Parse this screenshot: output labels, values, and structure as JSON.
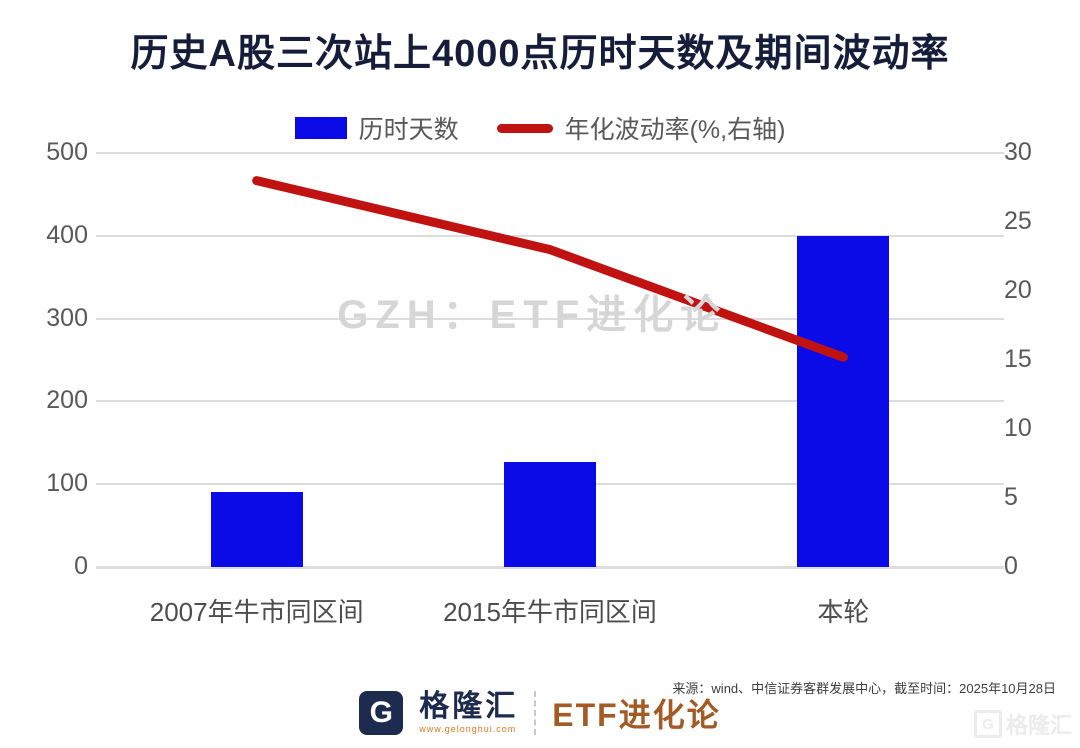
{
  "title": "历史A股三次站上4000点历时天数及期间波动率",
  "watermark": "GZH：ETF进化论",
  "colors": {
    "bar_blue": "#0b0be8",
    "line_red": "#c11212",
    "title_navy": "#151d3b",
    "gridline": "#dcdcdc",
    "axis_text": "#595959",
    "watermark_gray": "#d6d6d6",
    "brand_navy": "#1d2b4f",
    "brand_brown": "#a35a25",
    "brand_orange": "#e07820"
  },
  "chart_data": {
    "type": "bar",
    "subtype": "bar+line combo, dual axis",
    "title": "历史A股三次站上4000点历时天数及期间波动率",
    "categories": [
      "2007年牛市同区间",
      "2015年牛市同区间",
      "本轮"
    ],
    "series": [
      {
        "name": "历时天数",
        "type": "bar",
        "axis": "left",
        "color": "#0b0be8",
        "values": [
          90,
          127,
          400
        ]
      },
      {
        "name": "年化波动率(%,右轴)",
        "type": "line",
        "axis": "right",
        "color": "#c11212",
        "values": [
          28,
          23,
          15.2
        ]
      }
    ],
    "left_axis": {
      "ticks": [
        0,
        100,
        200,
        300,
        400,
        500
      ],
      "range": [
        0,
        500
      ]
    },
    "right_axis": {
      "ticks": [
        0,
        5,
        10,
        15,
        20,
        25,
        30
      ],
      "range": [
        0,
        30
      ]
    },
    "grid": true,
    "legend_position": "top"
  },
  "footer": {
    "source": "来源：wind、中信证券客群发展中心，截至时间：2025年10月28日",
    "logo_letter": "G",
    "logo_text": "格隆汇",
    "logo_url_text": "www.gelonghui.com",
    "brand_text": "ETF进化论",
    "corner_watermark_letter": "G",
    "corner_watermark_text": "格隆汇"
  }
}
